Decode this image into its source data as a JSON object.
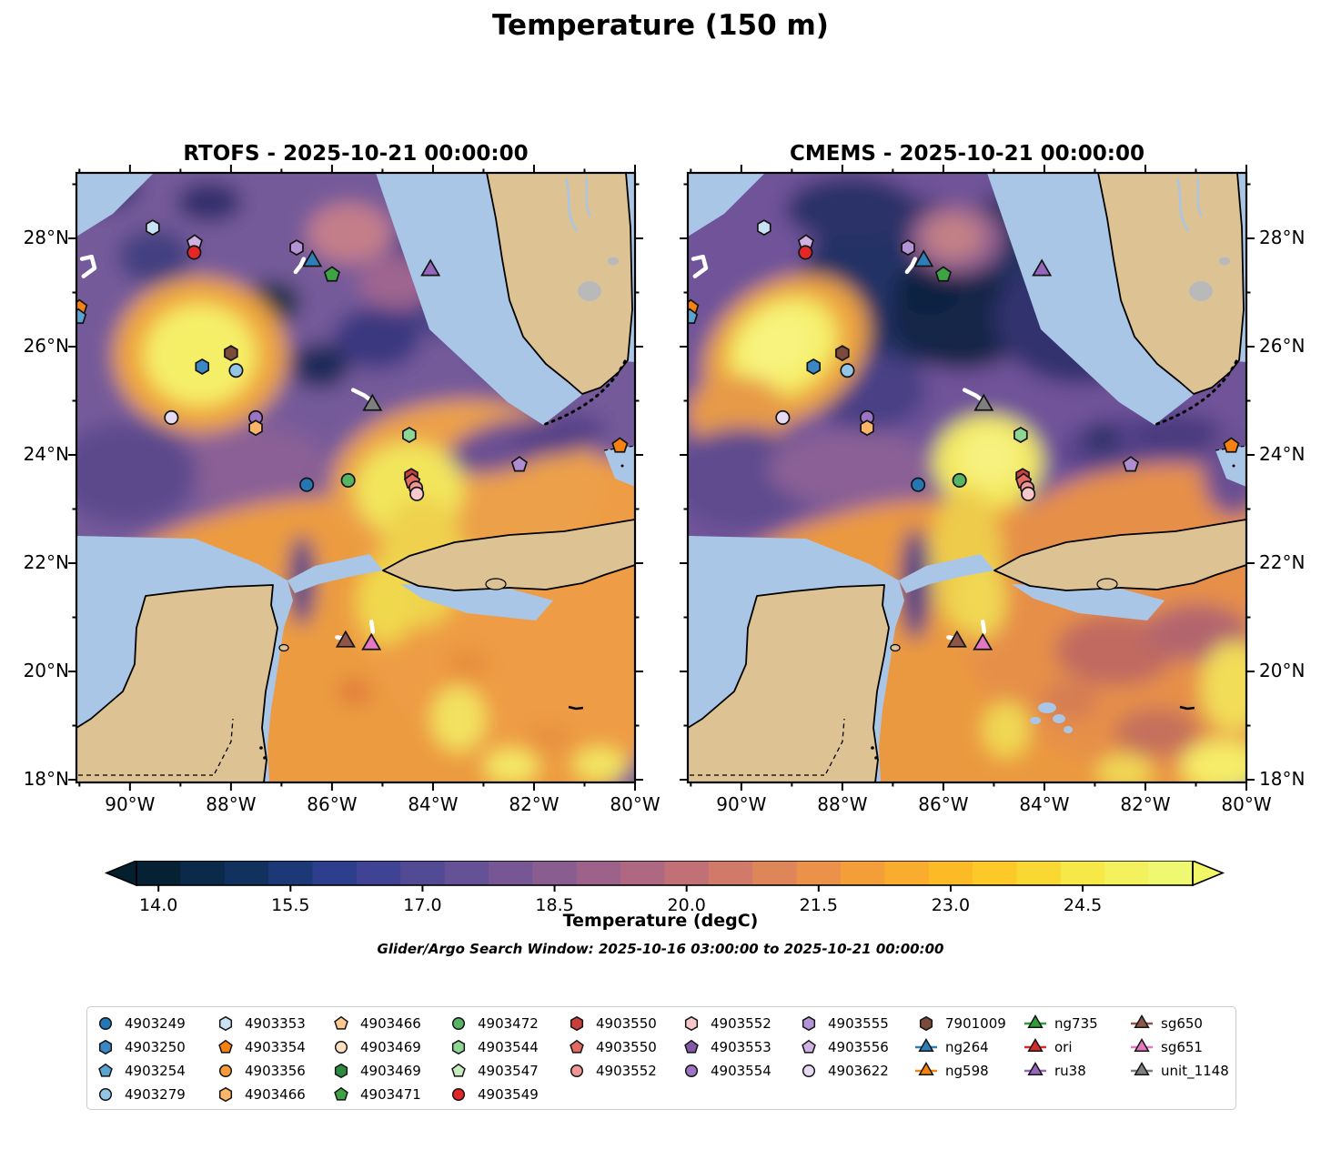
{
  "title": "Temperature (150 m)",
  "panels": [
    {
      "model": "RTOFS",
      "title": "RTOFS - 2025-10-21 00:00:00"
    },
    {
      "model": "CMEMS",
      "title": "CMEMS - 2025-10-21 00:00:00"
    }
  ],
  "subtitle": "Glider/Argo Search Window: 2025-10-16 03:00:00 to 2025-10-21 00:00:00",
  "axes": {
    "lon_range_degE": [
      -91.06,
      -80.0
    ],
    "lat_range_degN": [
      17.95,
      29.21
    ],
    "lon_ticks": [
      {
        "label": "90°W",
        "value": -90
      },
      {
        "label": "88°W",
        "value": -88
      },
      {
        "label": "86°W",
        "value": -86
      },
      {
        "label": "84°W",
        "value": -84
      },
      {
        "label": "82°W",
        "value": -82
      },
      {
        "label": "80°W",
        "value": -80
      }
    ],
    "lat_ticks": [
      {
        "label": "28°N",
        "value": 28
      },
      {
        "label": "26°N",
        "value": 26
      },
      {
        "label": "24°N",
        "value": 24
      },
      {
        "label": "22°N",
        "value": 22
      },
      {
        "label": "20°N",
        "value": 20
      },
      {
        "label": "18°N",
        "value": 18
      }
    ],
    "lon_minor": [
      -91,
      -89,
      -87,
      -85,
      -83,
      -81
    ],
    "lat_minor": [
      19,
      21,
      23,
      25,
      27,
      29
    ]
  },
  "colorbar": {
    "label": "Temperature (degC)",
    "ticks": [
      "14.0",
      "15.5",
      "17.0",
      "18.5",
      "20.0",
      "21.5",
      "23.0",
      "24.5"
    ],
    "tick_values": [
      14.0,
      15.5,
      17.0,
      18.5,
      20.0,
      21.5,
      23.0,
      24.5
    ],
    "range": [
      13.75,
      25.75
    ],
    "colormap": "cmocean-thermal",
    "segment_colors": [
      "#062133",
      "#0b2948",
      "#11315e",
      "#1c3876",
      "#2c3e8c",
      "#404394",
      "#534a95",
      "#655195",
      "#775793",
      "#8a5d90",
      "#9c628a",
      "#af6881",
      "#c17076",
      "#d17a69",
      "#df855a",
      "#eb914a",
      "#f49e3a",
      "#f9ac2d",
      "#fcba26",
      "#fcc928",
      "#fad833",
      "#f6e846",
      "#f3f25e",
      "#eff871"
    ],
    "under_color": "#04202f",
    "over_color": "#f2f767"
  },
  "legend": {
    "columns": [
      [
        {
          "label": "4903249",
          "shape": "circle",
          "color": "#2576b4"
        },
        {
          "label": "4903250",
          "shape": "hexagon",
          "color": "#3a87c4"
        },
        {
          "label": "4903254",
          "shape": "pentagon",
          "color": "#5ba3d0"
        },
        {
          "label": "4903279",
          "shape": "circle",
          "color": "#93c6e4"
        }
      ],
      [
        {
          "label": "4903353",
          "shape": "hexagon",
          "color": "#c9e2f4"
        },
        {
          "label": "4903354",
          "shape": "pentagon",
          "color": "#f58113"
        },
        {
          "label": "4903356",
          "shape": "circle",
          "color": "#f89a3c"
        },
        {
          "label": "4903466",
          "shape": "hexagon",
          "color": "#fcb569"
        }
      ],
      [
        {
          "label": "4903466",
          "shape": "pentagon",
          "color": "#fdc98f"
        },
        {
          "label": "4903469",
          "shape": "circle",
          "color": "#fee0c0"
        },
        {
          "label": "4903469",
          "shape": "hexagon",
          "color": "#2c8b3e"
        },
        {
          "label": "4903471",
          "shape": "pentagon",
          "color": "#3ea344"
        }
      ],
      [
        {
          "label": "4903472",
          "shape": "circle",
          "color": "#57b464"
        },
        {
          "label": "4903544",
          "shape": "hexagon",
          "color": "#8fd694"
        },
        {
          "label": "4903547",
          "shape": "pentagon",
          "color": "#c8ecc0"
        },
        {
          "label": "4903549",
          "shape": "circle",
          "color": "#e32726"
        }
      ],
      [
        {
          "label": "4903550",
          "shape": "hexagon",
          "color": "#c8403c"
        },
        {
          "label": "4903550",
          "shape": "pentagon",
          "color": "#e26a62"
        },
        {
          "label": "4903552",
          "shape": "circle",
          "color": "#f09694"
        }
      ],
      [
        {
          "label": "4903552",
          "shape": "hexagon",
          "color": "#f8c8cc"
        },
        {
          "label": "4903553",
          "shape": "pentagon",
          "color": "#8559aa"
        },
        {
          "label": "4903554",
          "shape": "circle",
          "color": "#9b74c4"
        }
      ],
      [
        {
          "label": "4903555",
          "shape": "hexagon",
          "color": "#b494d4"
        },
        {
          "label": "4903556",
          "shape": "pentagon",
          "color": "#cdb2e2"
        },
        {
          "label": "4903622",
          "shape": "circle",
          "color": "#e6d9f2"
        }
      ],
      [
        {
          "label": "7901009",
          "shape": "hexagon",
          "color": "#7a4a3a"
        },
        {
          "label": "ng264",
          "shape": "triangle",
          "color": "#2e7eb8",
          "line": true
        },
        {
          "label": "ng598",
          "shape": "triangle",
          "color": "#f5820d",
          "line": true
        }
      ],
      [
        {
          "label": "ng735",
          "shape": "triangle",
          "color": "#2f9e37",
          "line": true
        },
        {
          "label": "ori",
          "shape": "triangle",
          "color": "#d42a2a",
          "line": true
        },
        {
          "label": "ru38",
          "shape": "triangle",
          "color": "#9467bd",
          "line": true
        }
      ],
      [
        {
          "label": "sg650",
          "shape": "triangle",
          "color": "#8c564b",
          "line": true
        },
        {
          "label": "sg651",
          "shape": "triangle",
          "color": "#e377c2",
          "line": true
        },
        {
          "label": "unit_1148",
          "shape": "triangle",
          "color": "#7f7f7f",
          "line": true
        }
      ]
    ]
  },
  "chart_data": {
    "type": "heatmap",
    "title": "Temperature (150 m)",
    "panels": [
      "RTOFS - 2025-10-21 00:00:00",
      "CMEMS - 2025-10-21 00:00:00"
    ],
    "variable": "Temperature (degC)",
    "depth_m": 150,
    "region": "Gulf of Mexico / NW Caribbean",
    "lon_range_degW": [
      91.06,
      80.0
    ],
    "lat_range_degN": [
      17.95,
      29.21
    ],
    "colorbar_ticks": [
      14.0,
      15.5,
      17.0,
      18.5,
      20.0,
      21.5,
      23.0,
      24.5
    ],
    "colorbar_range": [
      13.75,
      25.75
    ],
    "colormap": "cmocean-thermal",
    "features": [
      "Warm (~25 degC) anticyclonic eddy near 89W 26N in both models",
      "Cold (~15 degC) water across the northern/northeastern deep Gulf, colder and broader in CMEMS",
      "Warm Loop Current tongue from Yucatan Channel toward Florida Straits (~24-25 degC)",
      "Warm Caribbean (~21-24 degC) southeast of Cuba/Yucatan",
      "Shallow shelves (West Florida, Campeche Bank, Bahamas) masked (no data)"
    ],
    "stations": [
      {
        "shape": "hexagon",
        "color": "#c9e2f4",
        "lon": -89.55,
        "lat": 28.2
      },
      {
        "shape": "pentagon",
        "color": "#cdb2e2",
        "lon": -88.72,
        "lat": 27.92
      },
      {
        "shape": "circle",
        "color": "#e32726",
        "lon": -88.73,
        "lat": 27.74
      },
      {
        "shape": "hexagon",
        "color": "#b494d4",
        "lon": -86.7,
        "lat": 27.83
      },
      {
        "id": "ng264",
        "shape": "triangle",
        "color": "#2e7eb8",
        "lon": -86.39,
        "lat": 27.58
      },
      {
        "shape": "pentagon",
        "color": "#3ea344",
        "lon": -86.0,
        "lat": 27.33
      },
      {
        "id": "ru38",
        "shape": "triangle",
        "color": "#9467bd",
        "lon": -84.05,
        "lat": 27.41
      },
      {
        "shape": "pentagon",
        "color": "#f58113",
        "lon": -91.0,
        "lat": 26.72
      },
      {
        "shape": "pentagon",
        "color": "#5ba3d0",
        "lon": -91.02,
        "lat": 26.55
      },
      {
        "id": "7901009",
        "shape": "hexagon",
        "color": "#7a4a3a",
        "lon": -88.0,
        "lat": 25.88
      },
      {
        "shape": "hexagon",
        "color": "#3a87c4",
        "lon": -88.57,
        "lat": 25.63
      },
      {
        "shape": "circle",
        "color": "#93c6e4",
        "lon": -87.9,
        "lat": 25.56
      },
      {
        "shape": "circle",
        "color": "#e6d9f2",
        "lon": -89.18,
        "lat": 24.69
      },
      {
        "shape": "circle",
        "color": "#9b74c4",
        "lon": -87.51,
        "lat": 24.69
      },
      {
        "shape": "hexagon",
        "color": "#fcb569",
        "lon": -87.51,
        "lat": 24.5
      },
      {
        "id": "unit_1148",
        "shape": "triangle",
        "color": "#7f7f7f",
        "lon": -85.2,
        "lat": 24.92
      },
      {
        "shape": "hexagon",
        "color": "#8fd694",
        "lon": -84.47,
        "lat": 24.37
      },
      {
        "shape": "pentagon",
        "color": "#f58113",
        "lon": -80.3,
        "lat": 24.17
      },
      {
        "shape": "pentagon",
        "color": "#b08cd0",
        "lon": -82.29,
        "lat": 23.82
      },
      {
        "shape": "circle",
        "color": "#2576b4",
        "lon": -86.5,
        "lat": 23.45
      },
      {
        "shape": "circle",
        "color": "#57b464",
        "lon": -85.68,
        "lat": 23.53
      },
      {
        "shape": "hexagon",
        "color": "#c8403c",
        "lon": -84.43,
        "lat": 23.61
      },
      {
        "shape": "pentagon",
        "color": "#e26a62",
        "lon": -84.41,
        "lat": 23.51
      },
      {
        "shape": "circle",
        "color": "#f09694",
        "lon": -84.34,
        "lat": 23.39
      },
      {
        "shape": "circle",
        "color": "#f8c8cc",
        "lon": -84.32,
        "lat": 23.28
      },
      {
        "id": "sg650",
        "shape": "triangle",
        "color": "#8c564b",
        "lon": -85.73,
        "lat": 20.55
      },
      {
        "id": "sg651",
        "shape": "triangle",
        "color": "#e377c2",
        "lon": -85.22,
        "lat": 20.5
      }
    ],
    "glider_tracks": [
      {
        "points": [
          [
            -86.72,
            27.38
          ],
          [
            -86.62,
            27.5
          ],
          [
            -86.56,
            27.62
          ]
        ]
      },
      {
        "points": [
          [
            -90.95,
            27.62
          ],
          [
            -90.76,
            27.66
          ],
          [
            -90.7,
            27.45
          ],
          [
            -90.92,
            27.3
          ]
        ]
      },
      {
        "points": [
          [
            -85.58,
            25.2
          ],
          [
            -85.36,
            25.1
          ],
          [
            -85.22,
            25.0
          ]
        ]
      },
      {
        "points": [
          [
            -85.22,
            20.92
          ],
          [
            -85.19,
            20.73
          ]
        ]
      },
      {
        "points": [
          [
            -85.9,
            20.63
          ],
          [
            -85.77,
            20.61
          ]
        ]
      }
    ]
  }
}
